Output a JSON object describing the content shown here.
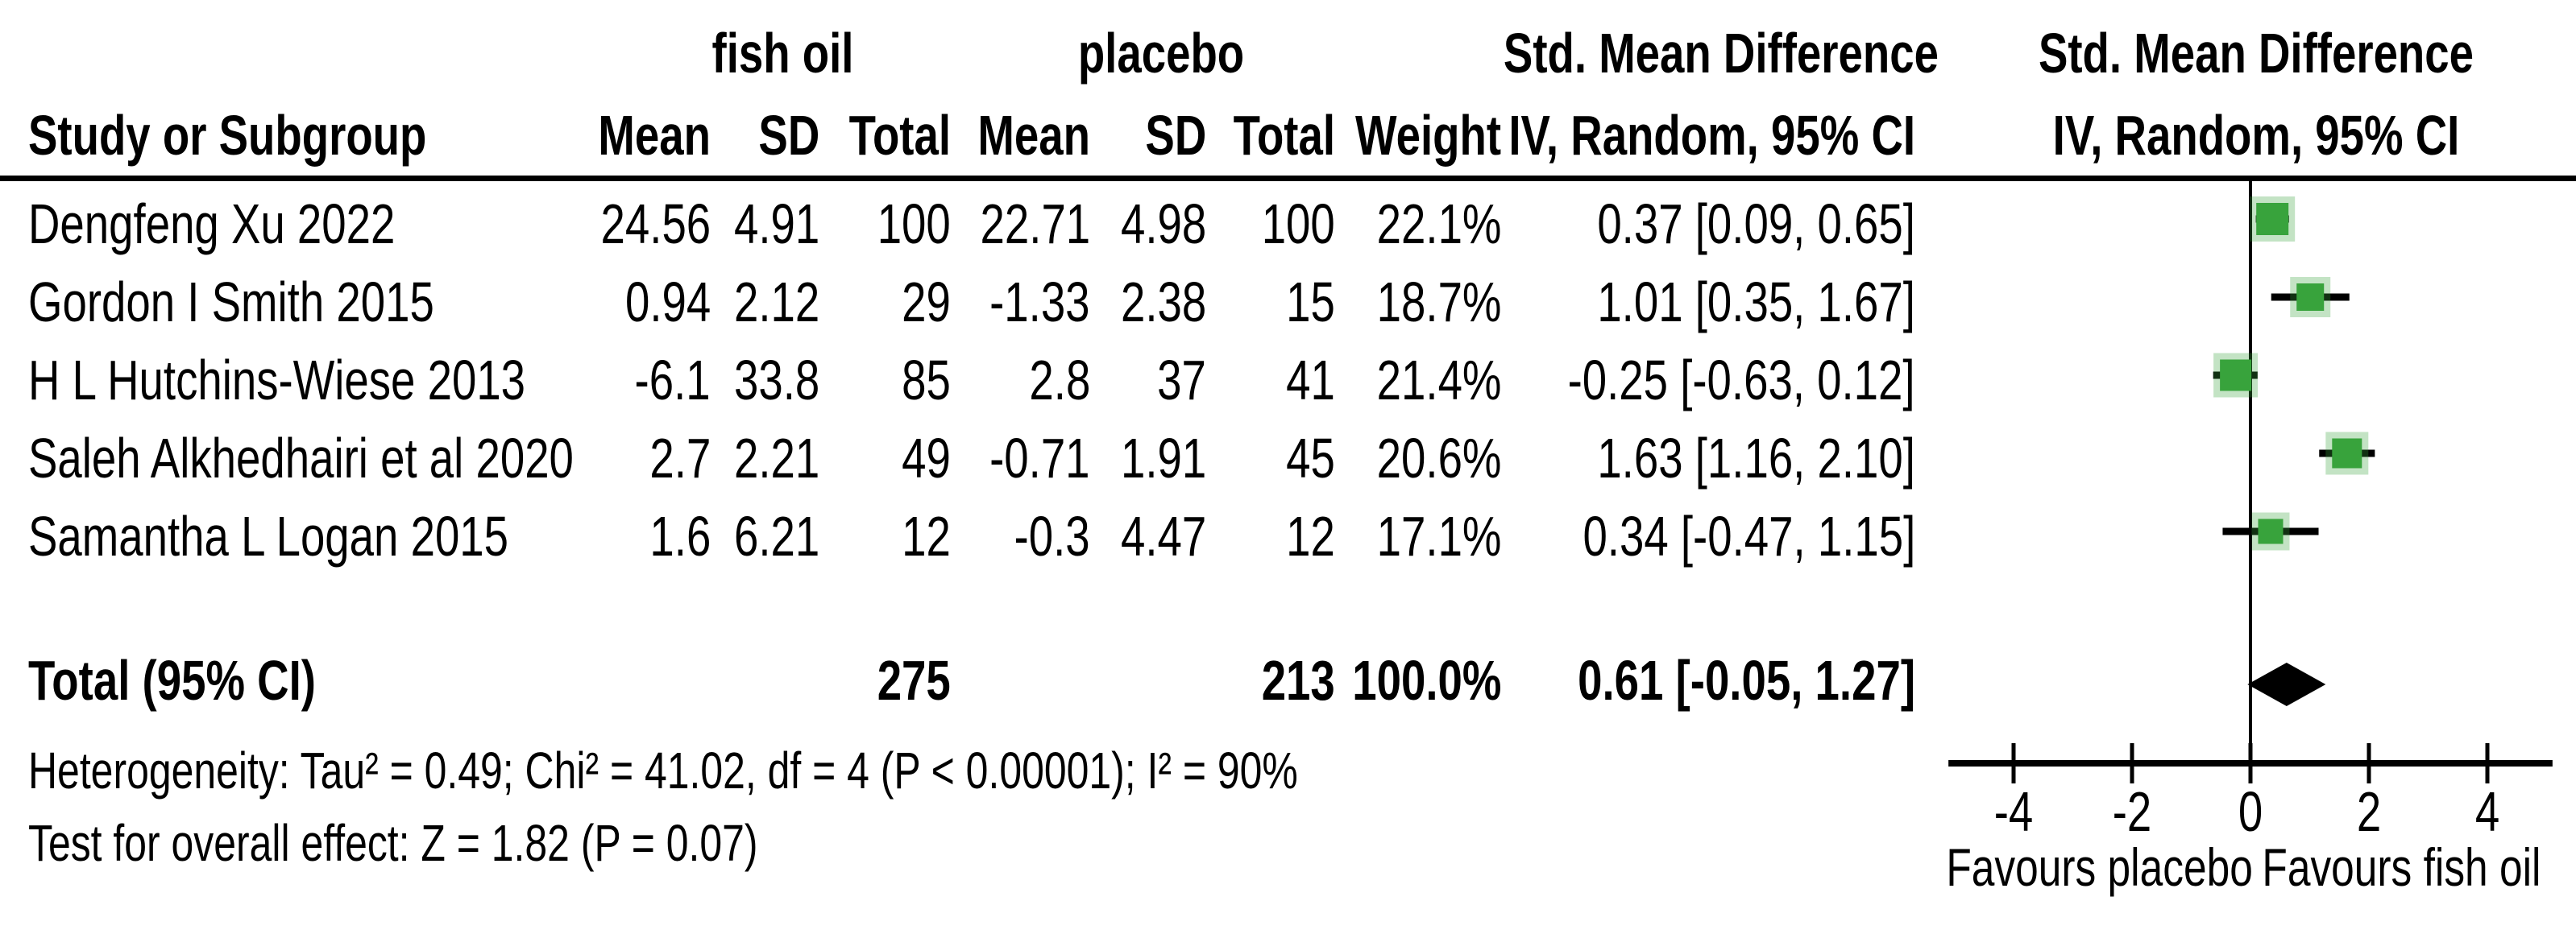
{
  "chart_data": {
    "type": "forest",
    "effect_measure": "Std. Mean Difference",
    "method_label": "IV, Random, 95% CI",
    "group_labels": {
      "treatment": "fish oil",
      "control": "placebo"
    },
    "columns": {
      "study": "Study or Subgroup",
      "mean": "Mean",
      "sd": "SD",
      "total": "Total",
      "weight": "Weight",
      "smd": "Std. Mean Difference",
      "method": "IV, Random, 95% CI"
    },
    "studies": [
      {
        "name": "Dengfeng Xu 2022",
        "fo_mean": "24.56",
        "fo_sd": "4.91",
        "fo_total": "100",
        "pl_mean": "22.71",
        "pl_sd": "4.98",
        "pl_total": "100",
        "weight": "22.1%",
        "ci_label": "0.37 [0.09, 0.65]",
        "est": 0.37,
        "lo": 0.09,
        "hi": 0.65,
        "w": 22.1
      },
      {
        "name": "Gordon I Smith 2015",
        "fo_mean": "0.94",
        "fo_sd": "2.12",
        "fo_total": "29",
        "pl_mean": "-1.33",
        "pl_sd": "2.38",
        "pl_total": "15",
        "weight": "18.7%",
        "ci_label": "1.01 [0.35, 1.67]",
        "est": 1.01,
        "lo": 0.35,
        "hi": 1.67,
        "w": 18.7
      },
      {
        "name": "H L Hutchins-Wiese 2013",
        "fo_mean": "-6.1",
        "fo_sd": "33.8",
        "fo_total": "85",
        "pl_mean": "2.8",
        "pl_sd": "37",
        "pl_total": "41",
        "weight": "21.4%",
        "ci_label": "-0.25 [-0.63, 0.12]",
        "est": -0.25,
        "lo": -0.63,
        "hi": 0.12,
        "w": 21.4
      },
      {
        "name": "Saleh Alkhedhairi et al 2020",
        "fo_mean": "2.7",
        "fo_sd": "2.21",
        "fo_total": "49",
        "pl_mean": "-0.71",
        "pl_sd": "1.91",
        "pl_total": "45",
        "weight": "20.6%",
        "ci_label": "1.63 [1.16, 2.10]",
        "est": 1.63,
        "lo": 1.16,
        "hi": 2.1,
        "w": 20.6
      },
      {
        "name": "Samantha L Logan  2015",
        "fo_mean": "1.6",
        "fo_sd": "6.21",
        "fo_total": "12",
        "pl_mean": "-0.3",
        "pl_sd": "4.47",
        "pl_total": "12",
        "weight": "17.1%",
        "ci_label": "0.34 [-0.47, 1.15]",
        "est": 0.34,
        "lo": -0.47,
        "hi": 1.15,
        "w": 17.1
      }
    ],
    "total": {
      "label": "Total (95% CI)",
      "fo_total": "275",
      "pl_total": "213",
      "weight": "100.0%",
      "ci_label": "0.61 [-0.05, 1.27]",
      "est": 0.61,
      "lo": -0.05,
      "hi": 1.27
    },
    "heterogeneity": "Heterogeneity: Tau² = 0.49; Chi² = 41.02, df = 4 (P < 0.00001); I² = 90%",
    "overall_effect": "Test for overall effect: Z = 1.82 (P = 0.07)",
    "xaxis": {
      "ticks": [
        -4,
        -2,
        0,
        2,
        4
      ],
      "range": [
        -5.1,
        5.1
      ],
      "favours_left": "Favours placebo",
      "favours_right": "Favours fish oil"
    },
    "marker_color": "#38a33c",
    "line_color": "#000000"
  }
}
